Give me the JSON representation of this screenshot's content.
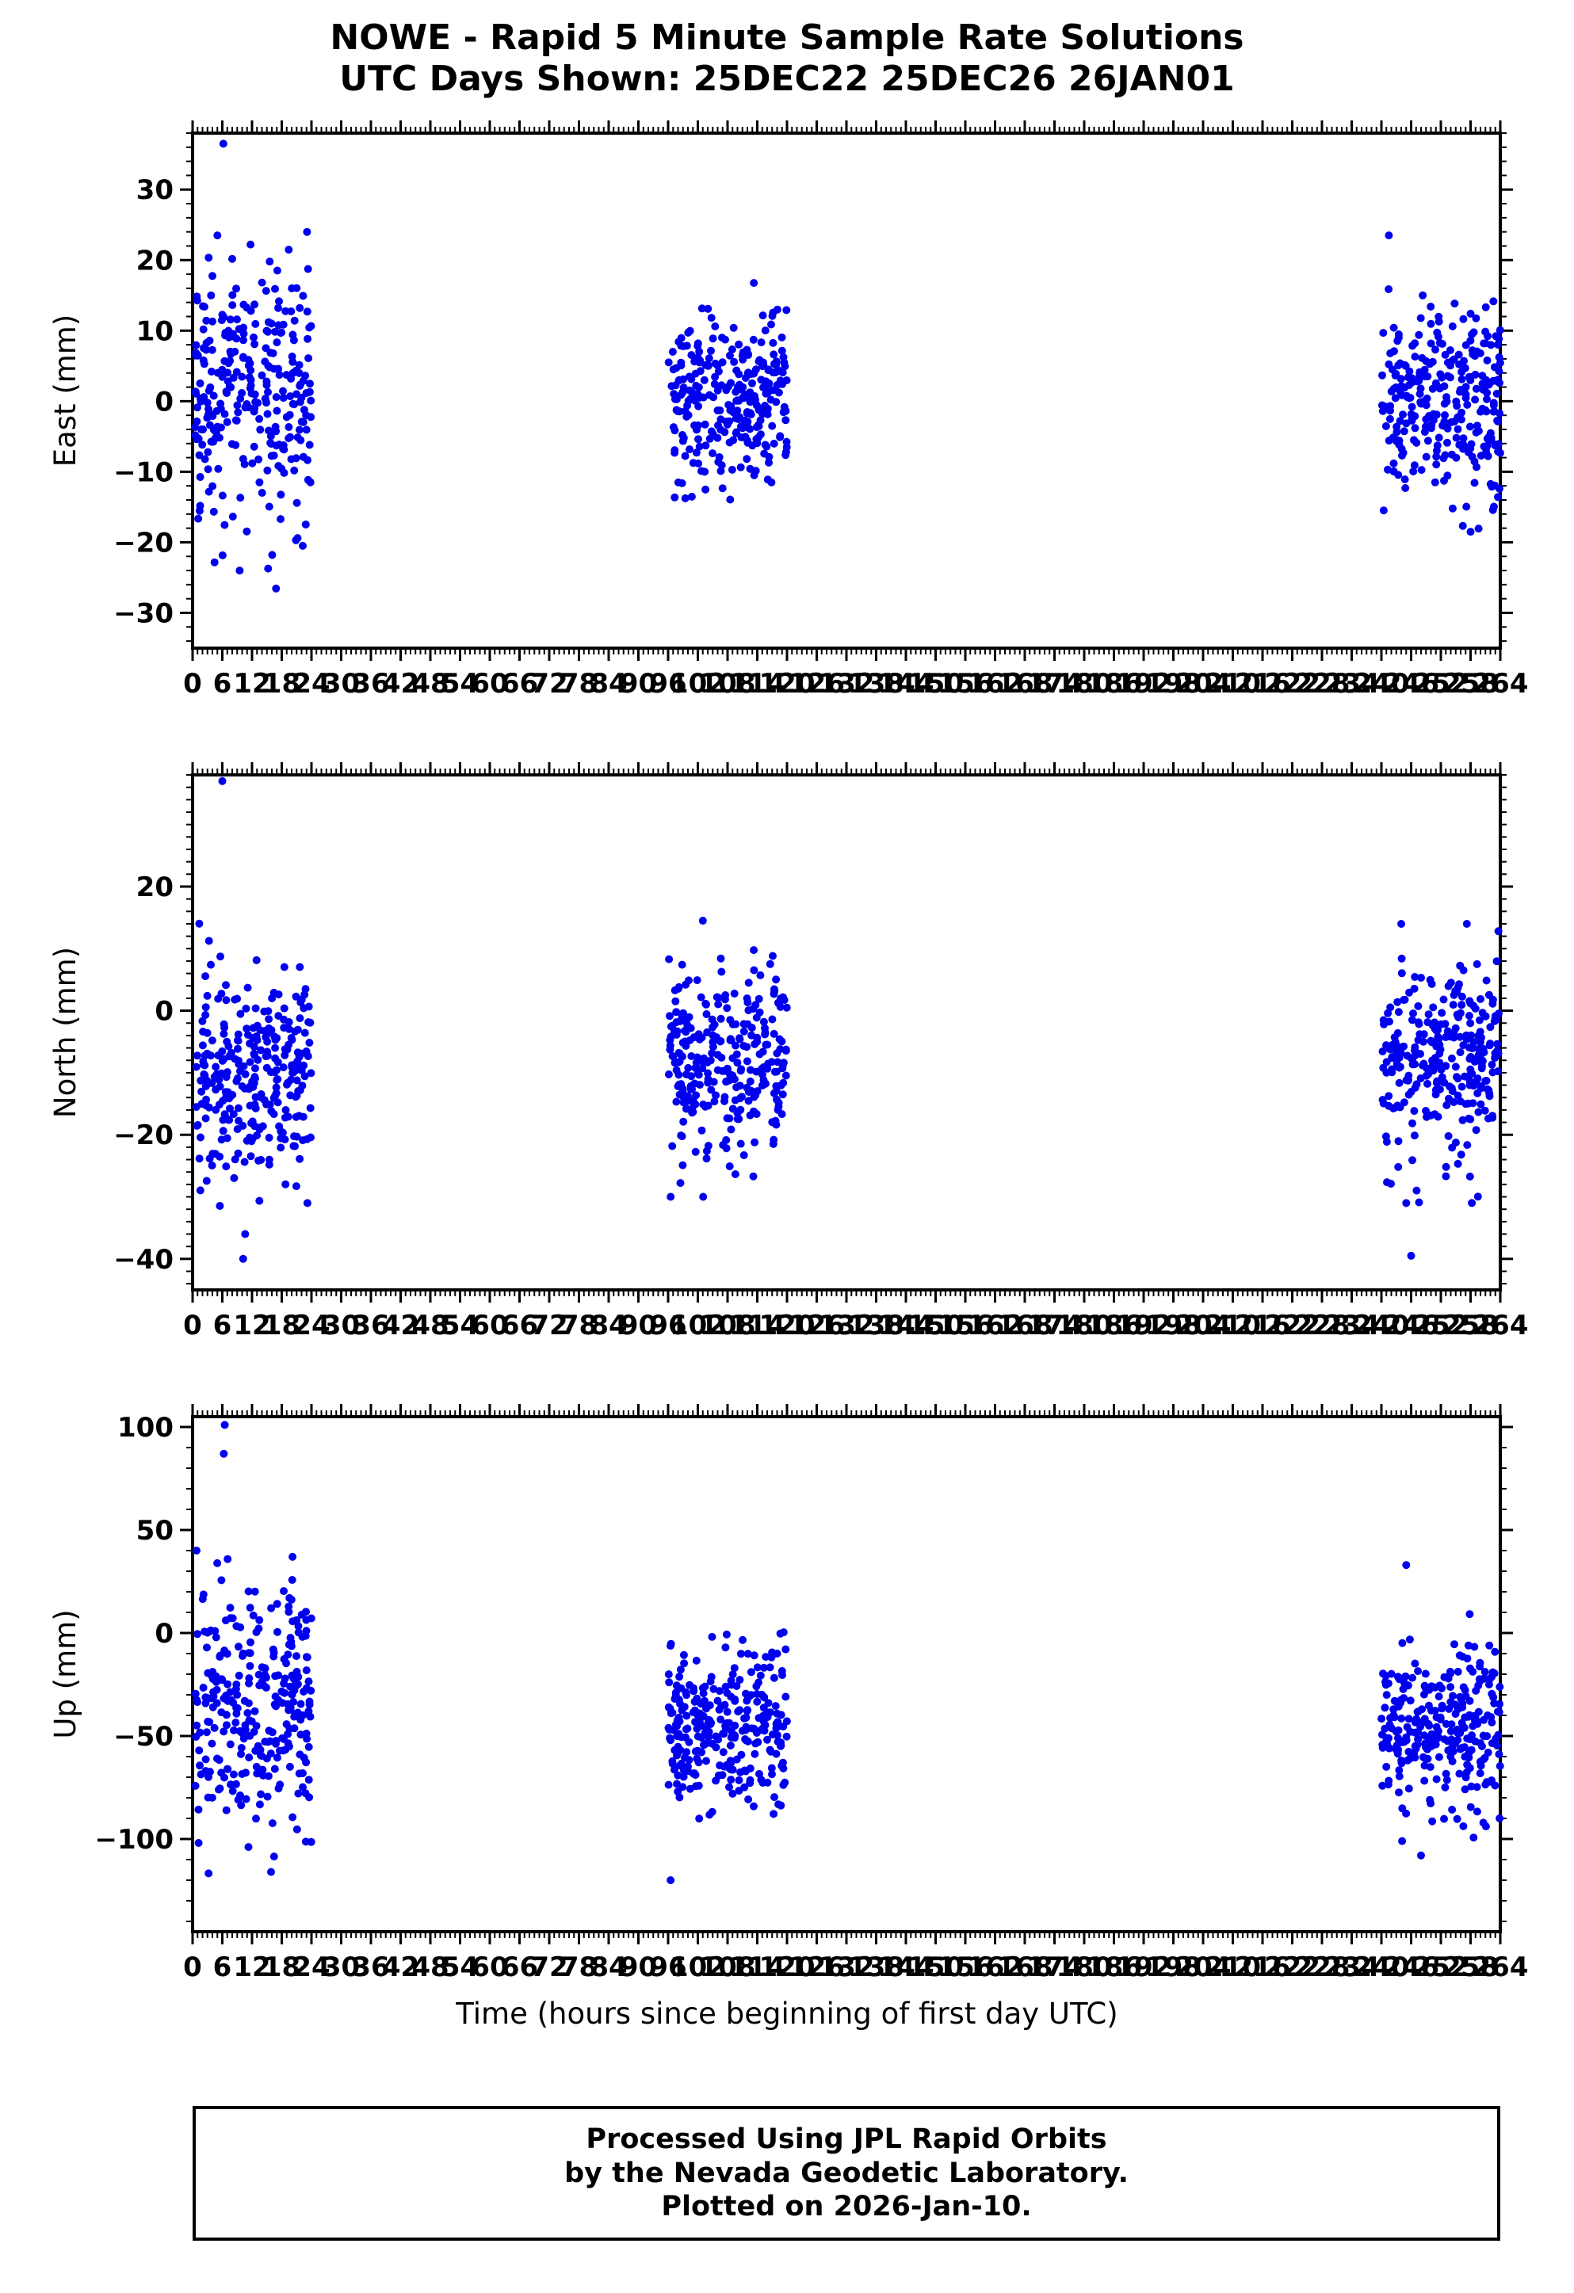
{
  "title": {
    "line1": "NOWE - Rapid 5 Minute Sample Rate Solutions",
    "line2": "UTC Days Shown:  25DEC22 25DEC26 26JAN01"
  },
  "xlabel": "Time (hours since beginning of first day UTC)",
  "footer": {
    "line1": "Processed Using JPL Rapid Orbits",
    "line2": "by the Nevada Geodetic Laboratory.",
    "line3": "Plotted on 2026-Jan-10."
  },
  "point_color": "#0000EE",
  "frame_color": "#000000",
  "chart_data": {
    "type": "scatter",
    "title": "NOWE - Rapid 5 Minute Sample Rate Solutions",
    "subtitle": "UTC Days Shown:  25DEC22 25DEC26 26JAN01",
    "xlabel": "Time (hours since beginning of first day UTC)",
    "grid": false,
    "legend": "none",
    "x": {
      "lim": [
        0,
        264
      ],
      "major": 6,
      "minor": 1,
      "tick_labels": [
        0,
        6,
        12,
        18,
        24,
        30,
        36,
        42,
        48,
        54,
        60,
        66,
        72,
        78,
        84,
        90,
        96,
        102,
        108,
        114,
        120,
        126,
        132,
        138,
        144,
        150,
        156,
        162,
        168,
        174,
        180,
        186,
        192,
        198,
        204,
        210,
        216,
        222,
        228,
        234,
        240,
        246,
        252,
        258,
        264
      ]
    },
    "panels": [
      {
        "name": "east",
        "ylabel": "East (mm)",
        "ylim": [
          -35,
          38
        ],
        "ymajor": 10,
        "yminor": 2,
        "yticks": [
          -30,
          -20,
          -10,
          0,
          10,
          20,
          30
        ],
        "clusters": [
          {
            "x_range": [
              0.5,
              24
            ],
            "n": 288,
            "mean": 1,
            "std": 9.5,
            "min": -32,
            "max": 24,
            "extras": [
              [
                6.2,
                36.5
              ],
              [
                5.0,
                23.5
              ],
              [
                9.5,
                -24
              ]
            ]
          },
          {
            "x_range": [
              96,
              120
            ],
            "n": 288,
            "mean": 0,
            "std": 6,
            "min": -14,
            "max": 17,
            "extras": []
          },
          {
            "x_range": [
              240,
              264
            ],
            "n": 288,
            "mean": 0,
            "std": 7,
            "min": -20,
            "max": 23.5,
            "extras": [
              [
                241.5,
                23.5
              ],
              [
                258,
                -18.5
              ]
            ]
          }
        ]
      },
      {
        "name": "north",
        "ylabel": "North (mm)",
        "ylim": [
          -45,
          38
        ],
        "ymajor": 20,
        "yminor": 2,
        "yticks": [
          -40,
          -20,
          0,
          20
        ],
        "clusters": [
          {
            "x_range": [
              0.5,
              24
            ],
            "n": 288,
            "mean": -10,
            "std": 8.5,
            "min": -34,
            "max": 22,
            "extras": [
              [
                6.0,
                37
              ],
              [
                10.2,
                -40
              ],
              [
                10.6,
                -36
              ]
            ]
          },
          {
            "x_range": [
              96,
              120
            ],
            "n": 288,
            "mean": -8,
            "std": 8,
            "min": -30,
            "max": 15,
            "extras": [
              [
                103,
                14.5
              ]
            ]
          },
          {
            "x_range": [
              240,
              264
            ],
            "n": 288,
            "mean": -8,
            "std": 8,
            "min": -31,
            "max": 14,
            "extras": [
              [
                246,
                -39.5
              ],
              [
                244,
                14
              ]
            ]
          }
        ]
      },
      {
        "name": "up",
        "ylabel": "Up (mm)",
        "ylim": [
          -145,
          105
        ],
        "ymajor": 50,
        "yminor": 10,
        "yticks": [
          -100,
          -50,
          0,
          50,
          100
        ],
        "clusters": [
          {
            "x_range": [
              0.5,
              24
            ],
            "n": 288,
            "mean": -40,
            "std": 33,
            "min": -138,
            "max": 88,
            "extras": [
              [
                6.5,
                101
              ],
              [
                6.3,
                87
              ],
              [
                0.8,
                40
              ]
            ]
          },
          {
            "x_range": [
              96,
              120
            ],
            "n": 288,
            "mean": -45,
            "std": 20,
            "min": -122,
            "max": 10,
            "extras": [
              [
                96.5,
                -120
              ]
            ]
          },
          {
            "x_range": [
              240,
              264
            ],
            "n": 288,
            "mean": -45,
            "std": 20,
            "min": -110,
            "max": 20,
            "extras": [
              [
                245,
                33
              ],
              [
                248,
                -108
              ]
            ]
          }
        ]
      }
    ]
  }
}
